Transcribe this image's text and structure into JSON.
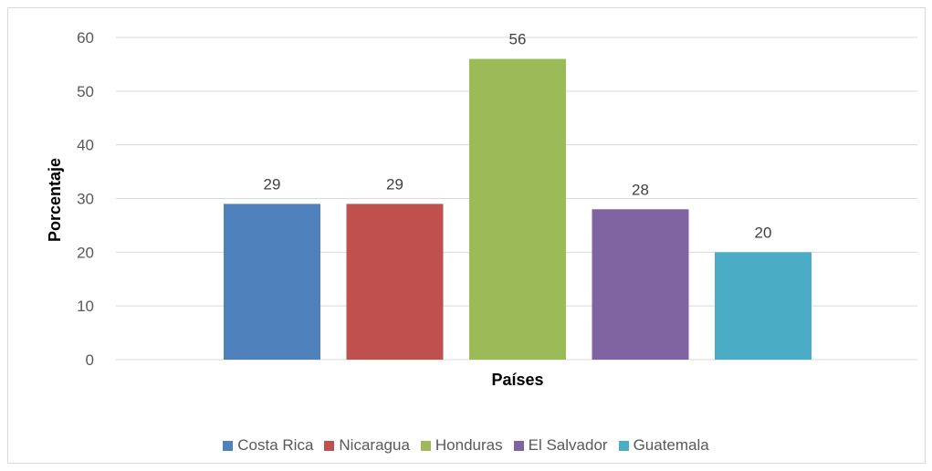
{
  "chart_data": {
    "type": "bar",
    "categories": [
      "Costa Rica",
      "Nicaragua",
      "Honduras",
      "El Salvador",
      "Guatemala"
    ],
    "values": [
      29,
      29,
      56,
      28,
      20
    ],
    "colors": [
      "#4f81bd",
      "#c0504d",
      "#9bbb59",
      "#8064a2",
      "#4bacc6"
    ],
    "xlabel": "Países",
    "ylabel": "Porcentaje",
    "ylim": [
      0,
      60
    ],
    "yticks": [
      0,
      10,
      20,
      30,
      40,
      50,
      60
    ],
    "data_labels": [
      "29",
      "29",
      "56",
      "28",
      "20"
    ],
    "grid": true,
    "legend_position": "bottom"
  }
}
